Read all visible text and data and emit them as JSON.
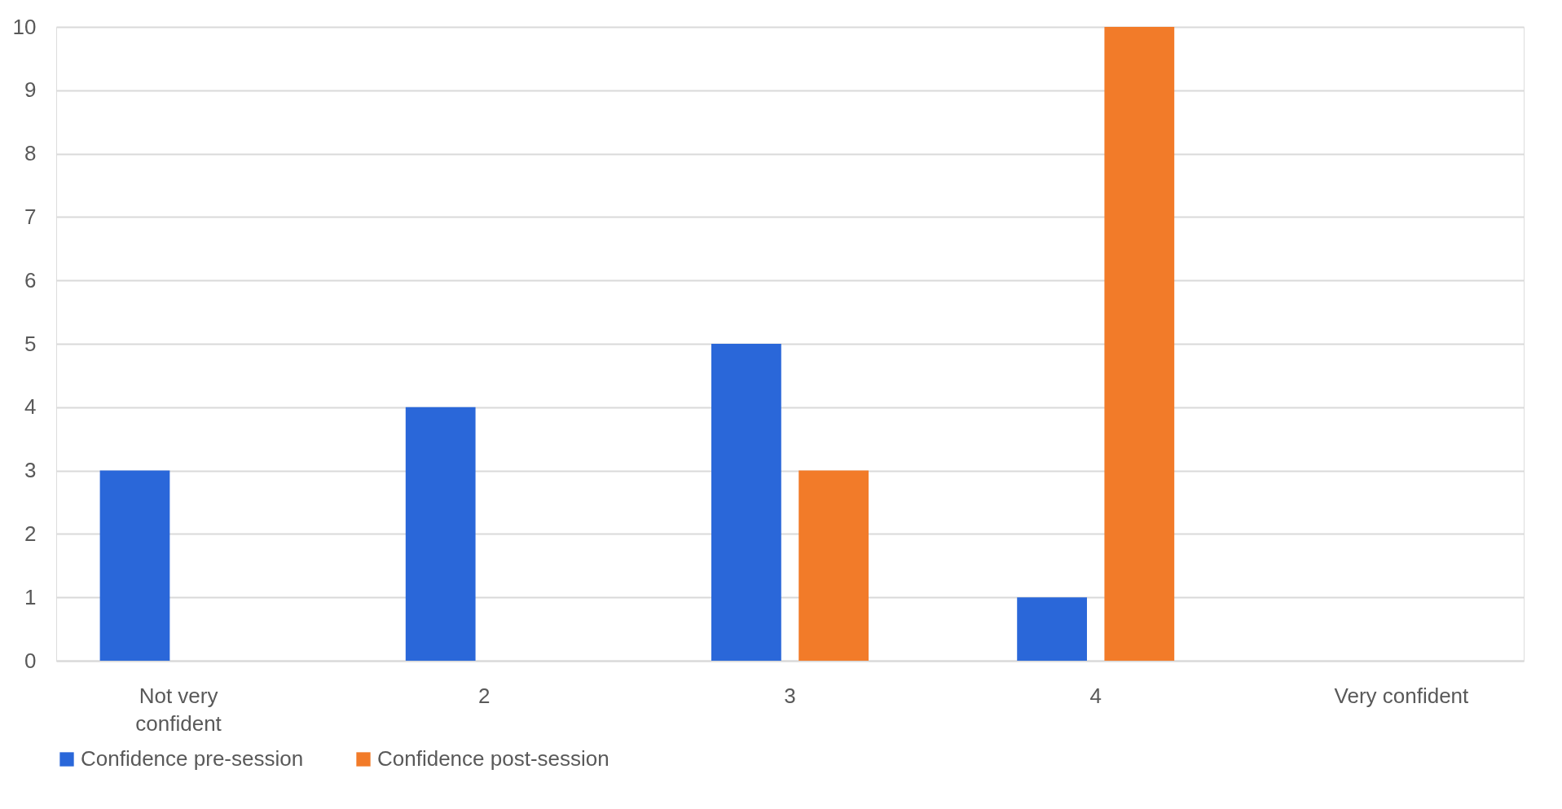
{
  "chart_data": {
    "type": "bar",
    "categories": [
      "Not very confident",
      "2",
      "3",
      "4",
      "Very confident"
    ],
    "series": [
      {
        "name": "Confidence pre-session",
        "color": "#2a67d9",
        "values": [
          3,
          4,
          5,
          1,
          0
        ]
      },
      {
        "name": "Confidence post-session",
        "color": "#f27b29",
        "values": [
          0,
          0,
          3,
          10,
          0
        ]
      }
    ],
    "ylim": [
      0,
      10
    ],
    "yticks": [
      0,
      1,
      2,
      3,
      4,
      5,
      6,
      7,
      8,
      9,
      10
    ],
    "grid": "y",
    "legend": "bottom"
  }
}
